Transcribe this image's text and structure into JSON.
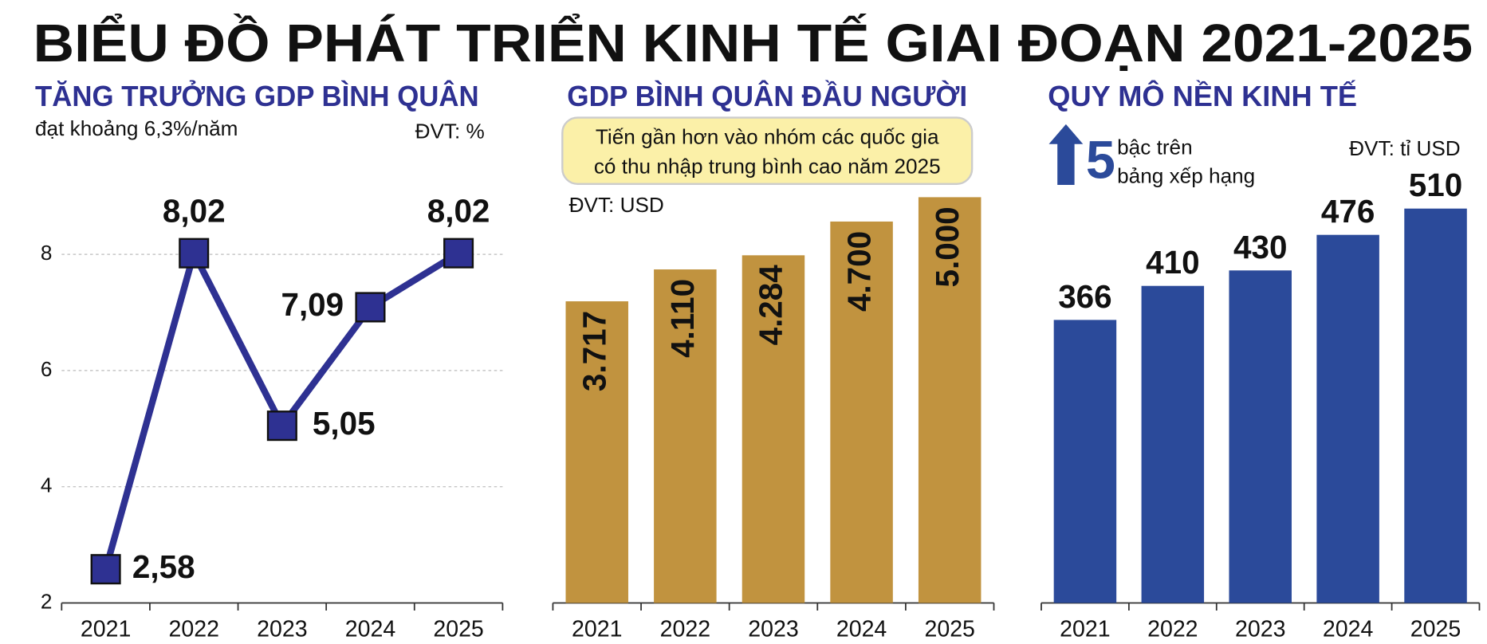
{
  "title": "BIỂU ĐỒ PHÁT TRIỂN KINH TẾ GIAI ĐOẠN 2021-2025",
  "chart_data": [
    {
      "type": "line",
      "title": "TĂNG TRƯỞNG GDP BÌNH QUÂN",
      "subtitle": "đạt khoảng 6,3%/năm",
      "unit": "ĐVT: %",
      "categories": [
        "2021",
        "2022",
        "2023",
        "2024",
        "2025"
      ],
      "values": [
        2.58,
        8.02,
        5.05,
        7.09,
        8.02
      ],
      "value_labels": [
        "2,58",
        "8,02",
        "5,05",
        "7,09",
        "8,02"
      ],
      "color": "#2e3192",
      "ylim": [
        2,
        9
      ],
      "yticks": [
        2,
        4,
        6,
        8
      ],
      "grid": true
    },
    {
      "type": "bar",
      "title": "GDP BÌNH QUÂN ĐẦU NGƯỜI",
      "unit": "ĐVT: USD",
      "annotation": [
        "Tiến gần hơn vào nhóm các quốc gia",
        "có thu nhập trung bình cao năm 2025"
      ],
      "categories": [
        "2021",
        "2022",
        "2023",
        "2024",
        "2025"
      ],
      "values": [
        3717,
        4110,
        4284,
        4700,
        5000
      ],
      "value_labels": [
        "3.717",
        "4.110",
        "4.284",
        "4.700",
        "5.000"
      ],
      "color": "#c1933f"
    },
    {
      "type": "bar",
      "title": "QUY MÔ NỀN KINH TẾ",
      "unit": "ĐVT: tỉ USD",
      "annotation": {
        "number": "5",
        "text": [
          "bậc trên",
          "bảng xếp hạng"
        ]
      },
      "categories": [
        "2021",
        "2022",
        "2023",
        "2024",
        "2025"
      ],
      "values": [
        366,
        410,
        430,
        476,
        510
      ],
      "color": "#2b4a9a"
    }
  ]
}
